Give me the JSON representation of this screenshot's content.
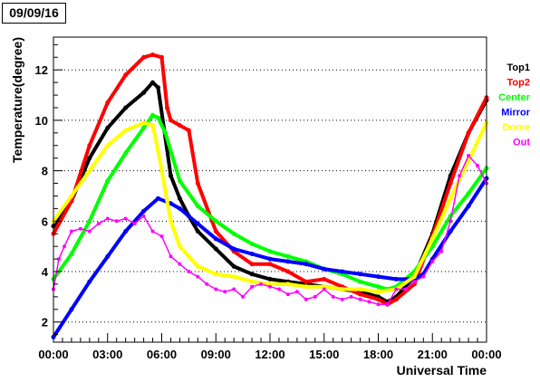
{
  "chart_data": {
    "type": "scatter",
    "title": "09/09/16",
    "xlabel": "Universal Time",
    "ylabel": "Temperature(degree)",
    "xlim": [
      0,
      24
    ],
    "ylim": [
      1.2,
      13.3
    ],
    "x_ticks": [
      {
        "value": 0,
        "label": "00:00"
      },
      {
        "value": 3,
        "label": "03:00"
      },
      {
        "value": 6,
        "label": "06:00"
      },
      {
        "value": 9,
        "label": "09:00"
      },
      {
        "value": 12,
        "label": "12:00"
      },
      {
        "value": 15,
        "label": "15:00"
      },
      {
        "value": 18,
        "label": "18:00"
      },
      {
        "value": 21,
        "label": "21:00"
      },
      {
        "value": 24,
        "label": "00:00"
      }
    ],
    "y_ticks": [
      {
        "value": 2,
        "label": "2"
      },
      {
        "value": 4,
        "label": "4"
      },
      {
        "value": 6,
        "label": "6"
      },
      {
        "value": 8,
        "label": "8"
      },
      {
        "value": 10,
        "label": "10"
      },
      {
        "value": 12,
        "label": "12"
      }
    ],
    "grid": "horizontal dotted",
    "legend_position": "right",
    "series": [
      {
        "name": "Top1",
        "color": "#000000",
        "x": [
          0,
          1,
          2,
          3,
          4,
          5,
          5.5,
          5.8,
          6.5,
          7,
          7.5,
          8,
          9,
          10,
          11,
          12,
          13,
          14,
          15,
          16,
          17,
          18,
          18.5,
          19,
          20,
          21,
          22,
          23,
          24
        ],
        "y": [
          5.8,
          6.8,
          8.5,
          9.7,
          10.5,
          11.1,
          11.5,
          11.3,
          7.8,
          6.9,
          6.2,
          5.6,
          4.9,
          4.2,
          3.9,
          3.7,
          3.6,
          3.5,
          3.4,
          3.3,
          3.2,
          3.0,
          2.8,
          3.0,
          3.8,
          5.5,
          7.8,
          9.5,
          10.8
        ]
      },
      {
        "name": "Top2",
        "color": "#ff0000",
        "x": [
          0,
          1,
          2,
          3,
          4,
          5,
          5.5,
          6,
          6.3,
          6.5,
          7,
          7.5,
          8,
          9,
          10,
          11,
          12,
          13,
          14,
          15,
          16,
          17,
          18,
          18.5,
          19,
          20,
          21,
          22,
          23,
          24
        ],
        "y": [
          5.5,
          6.8,
          9.0,
          10.7,
          11.8,
          12.5,
          12.6,
          12.5,
          10.5,
          10.0,
          9.8,
          9.6,
          7.5,
          5.6,
          4.8,
          4.3,
          4.3,
          4.0,
          3.6,
          3.7,
          3.4,
          3.1,
          2.9,
          2.7,
          2.9,
          3.5,
          5.4,
          7.5,
          9.5,
          10.9
        ]
      },
      {
        "name": "Center",
        "color": "#00ff00",
        "x": [
          0,
          1,
          2,
          3,
          4,
          5,
          5.5,
          5.8,
          6.2,
          7,
          8,
          9,
          10,
          11,
          12,
          13,
          14,
          15,
          16,
          17,
          18,
          18.5,
          19,
          20,
          21,
          22,
          23,
          24
        ],
        "y": [
          3.7,
          4.7,
          6.0,
          7.6,
          8.7,
          9.7,
          10.2,
          10.1,
          9.5,
          7.6,
          6.6,
          6.0,
          5.5,
          5.1,
          4.8,
          4.6,
          4.4,
          4.1,
          3.9,
          3.6,
          3.4,
          3.3,
          3.4,
          4.0,
          5.0,
          6.2,
          7.1,
          8.1
        ]
      },
      {
        "name": "Mirror",
        "color": "#0000ff",
        "x": [
          0,
          1,
          2,
          3,
          4,
          5,
          5.8,
          6.5,
          7,
          8,
          9,
          10,
          11,
          12,
          13,
          14,
          15,
          16,
          17,
          18,
          19,
          20,
          20.5,
          21,
          22,
          23,
          24
        ],
        "y": [
          1.4,
          2.5,
          3.6,
          4.6,
          5.6,
          6.4,
          6.9,
          6.7,
          6.5,
          5.9,
          5.3,
          4.9,
          4.7,
          4.5,
          4.4,
          4.3,
          4.1,
          4.0,
          3.9,
          3.8,
          3.7,
          3.7,
          3.9,
          4.5,
          5.6,
          6.6,
          7.7
        ]
      },
      {
        "name": "Dome",
        "color": "#ffff00",
        "x": [
          0,
          1,
          2,
          3,
          4,
          5,
          5.5,
          5.8,
          6.2,
          6.5,
          7,
          7.5,
          8,
          9,
          10,
          11,
          12,
          13,
          14,
          15,
          16,
          17,
          18,
          19,
          20,
          21,
          22,
          23,
          24
        ],
        "y": [
          6.0,
          7.0,
          8.0,
          9.0,
          9.6,
          9.9,
          9.8,
          8.8,
          7.2,
          6.0,
          5.0,
          4.6,
          4.2,
          3.9,
          3.8,
          3.6,
          3.5,
          3.5,
          3.4,
          3.4,
          3.3,
          3.3,
          3.2,
          3.3,
          3.8,
          5.3,
          6.9,
          8.4,
          9.9
        ]
      },
      {
        "name": "Out",
        "color": "#ff00ff",
        "x": [
          0,
          0.3,
          0.6,
          1,
          1.5,
          2,
          2.5,
          3,
          3.5,
          4,
          4.5,
          5,
          5.5,
          6,
          6.5,
          7,
          7.5,
          8,
          8.5,
          9,
          9.5,
          10,
          10.5,
          11,
          11.5,
          12,
          12.5,
          13,
          13.5,
          14,
          14.5,
          15,
          15.5,
          16,
          16.5,
          17,
          17.5,
          18,
          18.5,
          19,
          19.5,
          20,
          20.5,
          21,
          21.5,
          22,
          22.5,
          23,
          23.5,
          24
        ],
        "y": [
          3.3,
          4.5,
          5.0,
          5.6,
          5.7,
          5.6,
          5.9,
          6.1,
          6.0,
          6.1,
          5.9,
          6.2,
          5.6,
          5.4,
          4.6,
          4.3,
          4.0,
          3.8,
          3.5,
          3.3,
          3.2,
          3.3,
          3.0,
          3.4,
          3.5,
          3.4,
          3.3,
          3.1,
          3.2,
          2.9,
          3.0,
          3.3,
          3.0,
          2.9,
          3.0,
          2.9,
          2.8,
          2.7,
          2.7,
          3.3,
          3.3,
          3.6,
          3.8,
          4.4,
          4.8,
          6.0,
          7.8,
          8.6,
          8.2,
          7.5
        ]
      }
    ]
  }
}
